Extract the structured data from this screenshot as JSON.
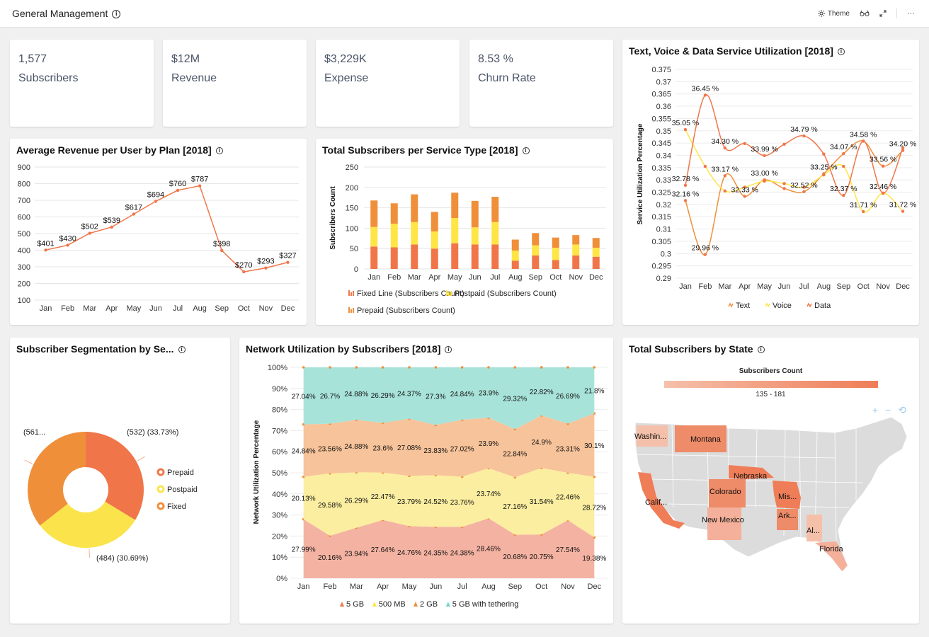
{
  "topbar": {
    "title": "General Management",
    "theme_label": "Theme",
    "more": "···"
  },
  "kpis": [
    {
      "value": "1,577",
      "label": "Subscribers"
    },
    {
      "value": "$12M",
      "label": "Revenue"
    },
    {
      "value": "$3,229K",
      "label": "Expense"
    },
    {
      "value": "8.53 %",
      "label": "Churn Rate"
    }
  ],
  "arpu": {
    "title": "Average Revenue per User by Plan [2018]",
    "chart_data": {
      "type": "line",
      "categories": [
        "Jan",
        "Feb",
        "Mar",
        "Apr",
        "May",
        "Jun",
        "Jul",
        "Aug",
        "Sep",
        "Oct",
        "Nov",
        "Dec"
      ],
      "values": [
        401,
        430,
        502,
        539,
        617,
        694,
        760,
        787,
        398,
        270,
        293,
        327
      ],
      "labels": [
        "$401",
        "$430",
        "$502",
        "$539",
        "$617",
        "$694",
        "$760",
        "$787",
        "$398",
        "$270",
        "$293",
        "$327"
      ],
      "yticks": [
        "100",
        "200",
        "300",
        "400",
        "500",
        "600",
        "700",
        "800",
        "900"
      ],
      "ylim": [
        100,
        900
      ],
      "color": "#f0764a"
    }
  },
  "subs": {
    "title": "Total Subscribers per Service Type [2018]",
    "ylabel": "Subscribers Count",
    "chart_data": {
      "type": "bar",
      "categories": [
        "Jan",
        "Feb",
        "Mar",
        "Apr",
        "May",
        "Jun",
        "Jul",
        "Aug",
        "Sep",
        "Oct",
        "Nov",
        "Dec"
      ],
      "yticks": [
        "0",
        "50",
        "100",
        "150",
        "200",
        "250"
      ],
      "ylim": [
        0,
        250
      ],
      "series": [
        {
          "name": "Fixed Line (Subscribers Count)",
          "color": "#f0764a",
          "values": [
            55,
            53,
            60,
            50,
            63,
            60,
            60,
            20,
            33,
            22,
            33,
            30
          ]
        },
        {
          "name": "Postpaid (Subscribers Count)",
          "color": "#ffe545",
          "values": [
            48,
            58,
            55,
            42,
            62,
            42,
            55,
            25,
            25,
            30,
            27,
            22
          ]
        },
        {
          "name": "Prepaid (Subscribers Count)",
          "color": "#f08f3a",
          "values": [
            65,
            50,
            68,
            48,
            62,
            65,
            62,
            27,
            30,
            25,
            23,
            24
          ]
        }
      ]
    }
  },
  "util": {
    "title": "Text, Voice & Data Service Utilization [2018]",
    "ylabel": "Service Utilization Percentage",
    "chart_data": {
      "type": "line",
      "categories": [
        "Jan",
        "Feb",
        "Mar",
        "Apr",
        "May",
        "Jun",
        "Jul",
        "Aug",
        "Sep",
        "Oct",
        "Nov",
        "Dec"
      ],
      "yticks": [
        "0.29",
        "0.295",
        "0.3",
        "0.305",
        "0.31",
        "0.315",
        "0.32",
        "0.325",
        "0.33",
        "0.335",
        "0.34",
        "0.345",
        "0.35",
        "0.355",
        "0.36",
        "0.365",
        "0.37",
        "0.375"
      ],
      "ylim": [
        0.29,
        0.375
      ],
      "series": [
        {
          "name": "Text",
          "color": "#f08f3a",
          "values": [
            0.3216,
            0.2996,
            0.3317,
            0.3233,
            0.33,
            0.3265,
            0.3252,
            0.3325,
            0.3407,
            0.3458,
            0.3356,
            0.342
          ]
        },
        {
          "name": "Voice",
          "color": "#ffe545",
          "values": [
            0.3505,
            0.3355,
            0.3255,
            0.327,
            0.3295,
            0.3285,
            0.327,
            0.332,
            0.3355,
            0.3171,
            0.3246,
            0.3172
          ]
        },
        {
          "name": "Data",
          "color": "#f0764a",
          "values": [
            0.3278,
            0.3645,
            0.343,
            0.3448,
            0.3399,
            0.3445,
            0.3479,
            0.3405,
            0.3237,
            0.3458,
            0.3246,
            0.343
          ]
        }
      ],
      "annotations": [
        {
          "text": "35.05 %",
          "x": "Jan",
          "y": 0.3505
        },
        {
          "text": "32.78 %",
          "x": "Jan",
          "y": 0.3278
        },
        {
          "text": "32.16 %",
          "x": "Jan",
          "y": 0.3216
        },
        {
          "text": "36.45 %",
          "x": "Feb",
          "y": 0.3645
        },
        {
          "text": "29.96 %",
          "x": "Feb",
          "y": 0.2996
        },
        {
          "text": "34.30 %",
          "x": "Mar",
          "y": 0.343
        },
        {
          "text": "33.17 %",
          "x": "Mar",
          "y": 0.3317
        },
        {
          "text": "32.33 %",
          "x": "Apr",
          "y": 0.3233
        },
        {
          "text": "33.99 %",
          "x": "May",
          "y": 0.3399
        },
        {
          "text": "33.00 %",
          "x": "May",
          "y": 0.33
        },
        {
          "text": "34.79 %",
          "x": "Jul",
          "y": 0.3479
        },
        {
          "text": "32.52 %",
          "x": "Jul",
          "y": 0.3252
        },
        {
          "text": "33.25 %",
          "x": "Aug",
          "y": 0.3325
        },
        {
          "text": "34.07 %",
          "x": "Sep",
          "y": 0.3407
        },
        {
          "text": "32.37 %",
          "x": "Sep",
          "y": 0.3237
        },
        {
          "text": "34.58 %",
          "x": "Oct",
          "y": 0.3458
        },
        {
          "text": "31.71 %",
          "x": "Oct",
          "y": 0.3171
        },
        {
          "text": "33.56 %",
          "x": "Nov",
          "y": 0.3356
        },
        {
          "text": "32.46 %",
          "x": "Nov",
          "y": 0.3246
        },
        {
          "text": "34.20 %",
          "x": "Dec",
          "y": 0.342
        },
        {
          "text": "31.72 %",
          "x": "Dec",
          "y": 0.3172
        }
      ]
    }
  },
  "segment": {
    "title": "Subscriber Segmentation by Se...",
    "chart_data": {
      "type": "pie",
      "slices": [
        {
          "name": "Prepaid",
          "value": 532,
          "percent": 33.73,
          "label": "(532) (33.73%)",
          "color": "#f0764a"
        },
        {
          "name": "Postpaid",
          "value": 484,
          "percent": 30.69,
          "label": "(484) (30.69%)",
          "color": "#fbe44b"
        },
        {
          "name": "Fixed",
          "value": 561,
          "percent": 35.58,
          "label": "(561...",
          "color": "#f08f3a"
        }
      ]
    }
  },
  "network": {
    "title": "Network Utilization by Subscribers [2018]",
    "ylabel": "Network Utilization Percentage",
    "chart_data": {
      "type": "area",
      "stacked_percent": true,
      "categories": [
        "Jan",
        "Feb",
        "Mar",
        "Apr",
        "May",
        "Jun",
        "Jul",
        "Aug",
        "Sep",
        "Oct",
        "Nov",
        "Dec"
      ],
      "yticks": [
        "0%",
        "10%",
        "20%",
        "30%",
        "40%",
        "50%",
        "60%",
        "70%",
        "80%",
        "90%",
        "100%"
      ],
      "series": [
        {
          "name": "5 GB",
          "color": "#f4b3a2",
          "values": [
            27.99,
            20.16,
            23.94,
            27.64,
            24.76,
            24.35,
            24.38,
            28.46,
            20.68,
            20.75,
            27.54,
            19.38
          ]
        },
        {
          "name": "500 MB",
          "color": "#fbeea0",
          "values": [
            20.13,
            29.58,
            26.29,
            22.47,
            23.79,
            24.52,
            23.76,
            23.74,
            27.16,
            31.54,
            22.46,
            28.72
          ]
        },
        {
          "name": "2 GB",
          "color": "#f7c39a",
          "values": [
            24.84,
            23.56,
            24.88,
            23.6,
            27.08,
            23.83,
            27.02,
            23.9,
            22.84,
            24.9,
            23.31,
            30.1
          ]
        },
        {
          "name": "5 GB with tethering",
          "color": "#a8e3d9",
          "values": [
            27.04,
            26.7,
            24.88,
            26.29,
            24.37,
            27.3,
            24.84,
            23.9,
            29.32,
            22.82,
            26.69,
            21.8
          ]
        }
      ],
      "labels": [
        [
          "27.99%",
          "20.16%",
          "23.94%",
          "27.64%",
          "24.76%",
          "24.35%",
          "24.38%",
          "28.46%",
          "20.68%",
          "20.75%",
          "27.54%",
          "19.38%"
        ],
        [
          "20.13%",
          "29.58%",
          "26.29%",
          "22.47%",
          "23.79%",
          "24.52%",
          "23.76%",
          "23.74%",
          "27.16%",
          "31.54%",
          "22.46%",
          "28.72%"
        ],
        [
          "24.84%",
          "23.56%",
          "24.88%",
          "23.6%",
          "27.08%",
          "23.83%",
          "27.02%",
          "23.9%",
          "22.84%",
          "24.9%",
          "23.31%",
          "30.1%"
        ],
        [
          "27.04%",
          "26.7%",
          "24.88%",
          "26.29%",
          "24.37%",
          "27.3%",
          "24.84%",
          "23.9%",
          "29.32%",
          "22.82%",
          "26.69%",
          "21.8%"
        ]
      ]
    }
  },
  "states": {
    "title": "Total Subscribers by State",
    "legend_title": "Subscribers Count",
    "legend_range": "135 - 181",
    "zoom_in": "+",
    "zoom_out": "−",
    "reset": "⟲",
    "labels": [
      "Washin...",
      "Montana",
      "Nebraska",
      "Colorado",
      "Calif...",
      "Mis...",
      "New Mexico",
      "Ark...",
      "Al...",
      "Florida"
    ]
  }
}
